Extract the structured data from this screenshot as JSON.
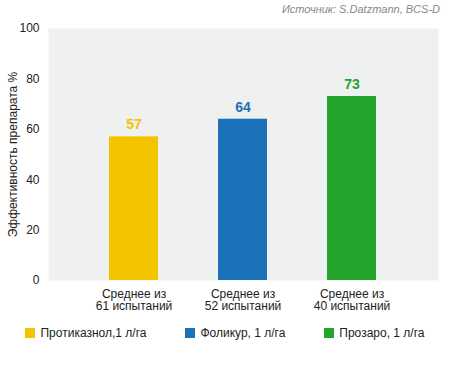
{
  "chart_data": {
    "type": "bar",
    "caption": "Источник: S.Datzmann, BCS-D",
    "y_label": "Эффективность препарата %",
    "categories": [
      "Среднее из\n61 испытаний",
      "Среднее из\n52 испытаний",
      "Среднее из\n40 испытаний"
    ],
    "series": [
      {
        "name": "Протиказнол,1 л/га",
        "color": "#f5c400",
        "values": [
          57,
          null,
          null
        ]
      },
      {
        "name": "Фоликур, 1 л/га",
        "color": "#1b72b8",
        "values": [
          null,
          64,
          null
        ]
      },
      {
        "name": "Прозаро, 1 л/га",
        "color": "#22a52a",
        "values": [
          null,
          null,
          73
        ]
      }
    ],
    "ylim": [
      0,
      100
    ],
    "yticks": [
      0,
      20,
      40,
      60,
      80,
      100
    ],
    "grid": false,
    "data_labels": true,
    "legend": "bottom"
  }
}
